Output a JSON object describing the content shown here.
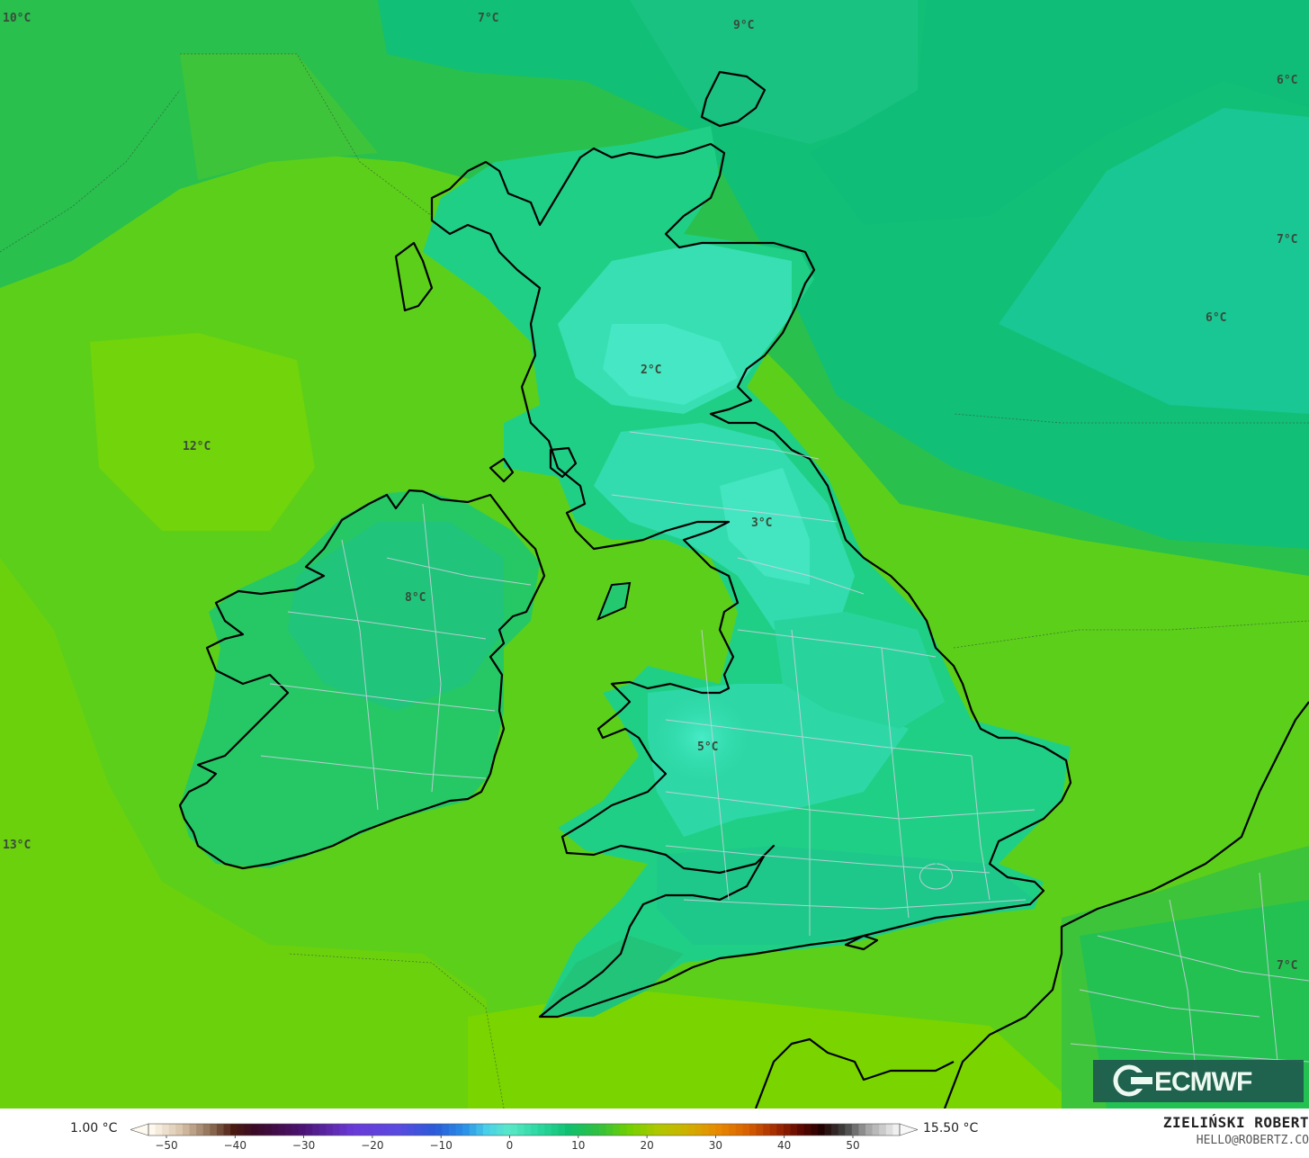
{
  "temp_labels": [
    {
      "text": "10°C"
    },
    {
      "text": "7°C"
    },
    {
      "text": "9°C"
    },
    {
      "text": "6°C"
    },
    {
      "text": "7°C"
    },
    {
      "text": "6°C"
    },
    {
      "text": "2°C"
    },
    {
      "text": "12°C"
    },
    {
      "text": "3°C"
    },
    {
      "text": "8°C"
    },
    {
      "text": "5°C"
    },
    {
      "text": "13°C"
    },
    {
      "text": "7°C"
    }
  ],
  "legend": {
    "min_label": "1.00 °C",
    "max_label": "15.50 °C",
    "ticks": [
      "−50",
      "−40",
      "−30",
      "−20",
      "−10",
      "0",
      "10",
      "20",
      "30",
      "40",
      "50"
    ]
  },
  "credit": {
    "name": "ZIELIŃSKI ROBERT",
    "email": "HELLO@ROBERTZ.CO"
  },
  "logo": {
    "text": "ECMWF"
  },
  "colors": {
    "sea_warm": "#7ad000",
    "sea_mid": "#3ec43a",
    "sea_cool": "#0fc080",
    "land_cold": "#3ae2b8"
  }
}
